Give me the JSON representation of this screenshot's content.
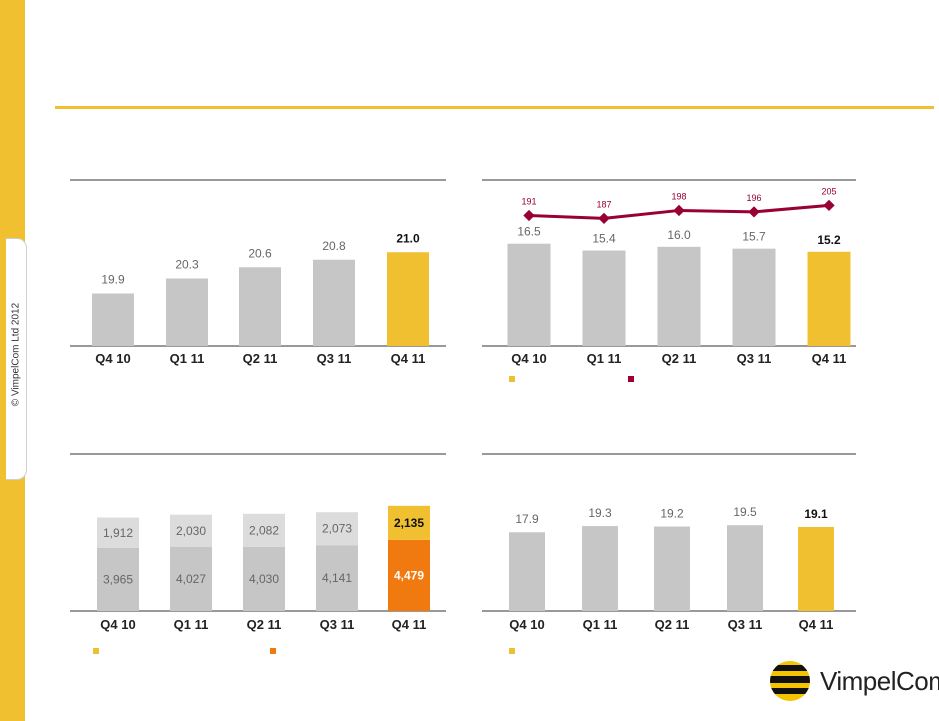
{
  "copyright": "© VimpelCom Ltd 2012",
  "logo": {
    "text": "VimpelCom"
  },
  "colors": {
    "gray": "#c6c6c6",
    "light_gray": "#dcdcdc",
    "yellow": "#f0c030",
    "orange": "#f07a10",
    "maroon": "#990033",
    "text_gray": "#666666"
  },
  "chart_data": [
    {
      "type": "bar",
      "categories": [
        "Q4 10",
        "Q1 11",
        "Q2 11",
        "Q3 11",
        "Q4 11"
      ],
      "values": [
        19.9,
        20.3,
        20.6,
        20.8,
        21.0
      ],
      "value_labels": [
        "19.9",
        "20.3",
        "20.6",
        "20.8",
        "21.0"
      ],
      "highlight_last": true
    },
    {
      "type": "bar",
      "categories": [
        "Q4 10",
        "Q1 11",
        "Q2 11",
        "Q3 11",
        "Q4 11"
      ],
      "values": [
        16.5,
        15.4,
        16.0,
        15.7,
        15.2
      ],
      "value_labels": [
        "16.5",
        "15.4",
        "16.0",
        "15.7",
        "15.2"
      ],
      "highlight_last": true,
      "line_series": {
        "values": [
          191,
          187,
          198,
          196,
          205
        ],
        "value_labels": [
          "191",
          "187",
          "198",
          "196",
          "205"
        ]
      },
      "legend": [
        "",
        ""
      ]
    },
    {
      "type": "bar",
      "stacked": true,
      "categories": [
        "Q4 10",
        "Q1 11",
        "Q2 11",
        "Q3 11",
        "Q4 11"
      ],
      "series": [
        {
          "values": [
            3965,
            4027,
            4030,
            4141,
            4479
          ],
          "value_labels": [
            "3,965",
            "4,027",
            "4,030",
            "4,141",
            "4,479"
          ]
        },
        {
          "values": [
            1912,
            2030,
            2082,
            2073,
            2135
          ],
          "value_labels": [
            "1,912",
            "2,030",
            "2,082",
            "2,073",
            "2,135"
          ]
        }
      ],
      "highlight_last": true,
      "legend": [
        "",
        ""
      ]
    },
    {
      "type": "bar",
      "categories": [
        "Q4 10",
        "Q1 11",
        "Q2 11",
        "Q3 11",
        "Q4 11"
      ],
      "values": [
        17.9,
        19.3,
        19.2,
        19.5,
        19.1
      ],
      "value_labels": [
        "17.9",
        "19.3",
        "19.2",
        "19.5",
        "19.1"
      ],
      "highlight_last": true,
      "legend": [
        ""
      ]
    }
  ]
}
